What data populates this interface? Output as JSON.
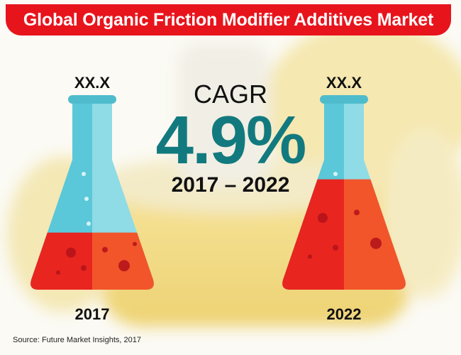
{
  "title": "Global Organic Friction Modifier Additives Market",
  "source": "Source: Future Market Insights, 2017",
  "colors": {
    "title_bg": "#e8141c",
    "cagr_text": "#127a7e",
    "flask_body": "#5ac8d8",
    "liquid_left": "#e8251f",
    "liquid_right": "#f2552a"
  },
  "chart_data": {
    "type": "bar",
    "categories": [
      "2017",
      "2022"
    ],
    "value_labels": [
      "XX.X",
      "XX.X"
    ],
    "relative_levels": [
      0.3,
      0.58
    ],
    "cagr": {
      "label": "CAGR",
      "value": "4.9%",
      "period": "2017 – 2022"
    }
  }
}
